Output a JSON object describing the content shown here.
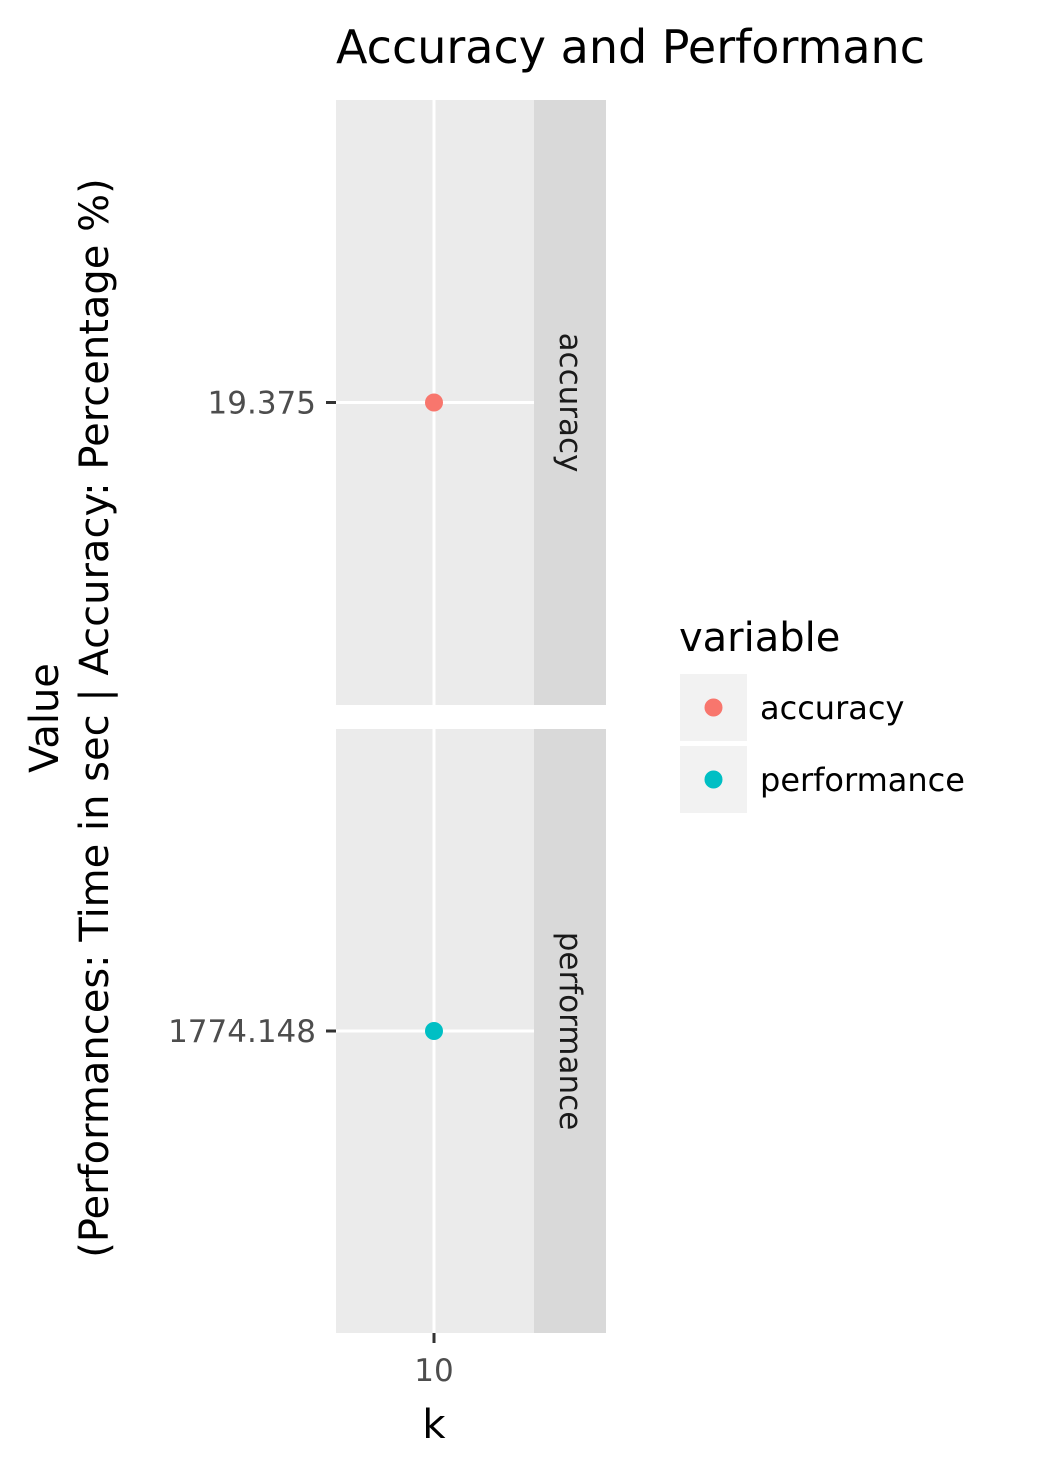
{
  "chart_data": {
    "type": "scatter",
    "title": "Accuracy and Performanc",
    "xlabel": "k",
    "ylabel_lines": [
      "Value",
      "(Performances: Time in sec | Accuracy: Percentage %)"
    ],
    "x_ticks": [
      "10"
    ],
    "facets": [
      {
        "strip_label": "accuracy",
        "y_tick": "19.375",
        "points": [
          {
            "x": 10,
            "y": 19.375
          }
        ],
        "color": "#F8766D"
      },
      {
        "strip_label": "performance",
        "y_tick": "1774.148",
        "points": [
          {
            "x": 10,
            "y": 1774.148
          }
        ],
        "color": "#00BFC4"
      }
    ],
    "legend": {
      "title": "variable",
      "placement": "right",
      "entries": [
        {
          "label": "accuracy",
          "color": "#F8766D"
        },
        {
          "label": "performance",
          "color": "#00BFC4"
        }
      ]
    },
    "grid": true
  }
}
